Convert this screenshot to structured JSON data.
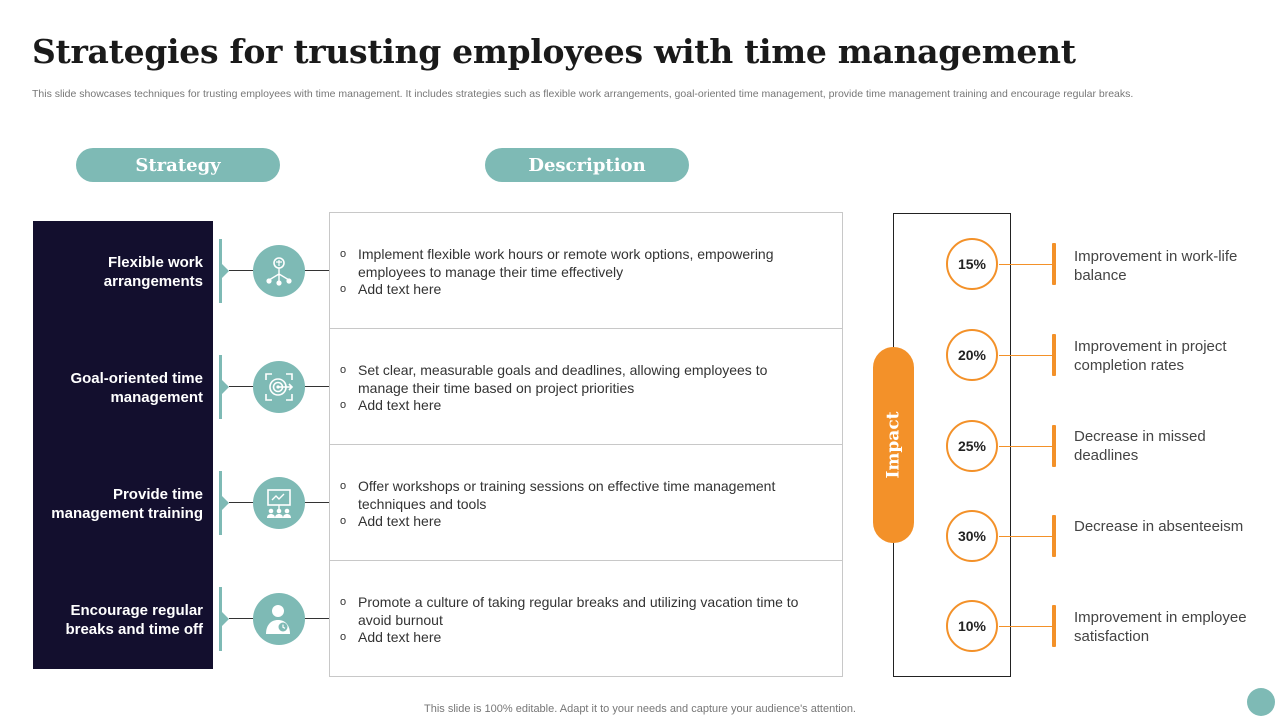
{
  "title": "Strategies for trusting employees with time management",
  "subtitle": "This slide showcases techniques for trusting employees with time management. It includes strategies such as flexible work arrangements, goal-oriented time management, provide time management training and encourage regular breaks.",
  "headers": {
    "strategy": "Strategy",
    "description": "Description",
    "impact": "Impact"
  },
  "strategies": [
    {
      "label": "Flexible work arrangements",
      "icon": "network-people-icon",
      "bullets": [
        "Implement flexible work hours or remote work options, empowering employees to manage their time effectively",
        "Add text here"
      ]
    },
    {
      "label": "Goal-oriented time management",
      "icon": "target-icon",
      "bullets": [
        "Set clear, measurable goals and deadlines, allowing employees to manage their time based on project priorities",
        "Add text here"
      ]
    },
    {
      "label": "Provide time management training",
      "icon": "training-presentation-icon",
      "bullets": [
        "Offer workshops or training sessions on effective time management techniques and tools",
        "Add text here"
      ]
    },
    {
      "label": "Encourage regular breaks and time off",
      "icon": "person-break-icon",
      "bullets": [
        "Promote a culture of taking regular breaks and utilizing vacation time to avoid burnout",
        "Add text here"
      ]
    }
  ],
  "impacts": [
    {
      "value": "15%",
      "text": "Improvement in work-life balance"
    },
    {
      "value": "20%",
      "text": "Improvement in project completion rates"
    },
    {
      "value": "25%",
      "text": "Decrease in missed deadlines"
    },
    {
      "value": "30%",
      "text": "Decrease in absenteeism"
    },
    {
      "value": "10%",
      "text": "Improvement in employee satisfaction"
    }
  ],
  "footer": "This slide is 100% editable. Adapt it to your needs and capture your audience's attention.",
  "colors": {
    "teal": "#7ebab5",
    "navy": "#130f2e",
    "orange": "#f39129"
  }
}
